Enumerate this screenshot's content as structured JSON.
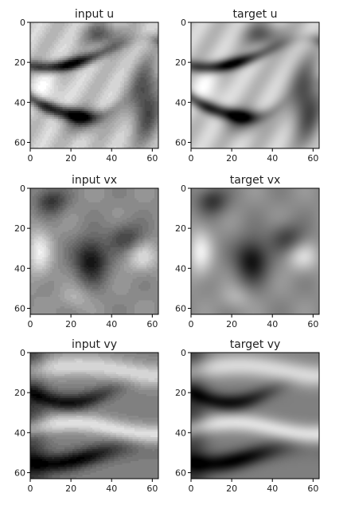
{
  "chart_data": [
    {
      "type": "heatmap",
      "title": "input u",
      "colormap": "gray",
      "xlim": [
        0,
        63
      ],
      "ylim": [
        63,
        0
      ],
      "xticks": [
        0,
        20,
        40,
        60
      ],
      "yticks": [
        0,
        20,
        40,
        60
      ],
      "pattern": "u",
      "smooth": false
    },
    {
      "type": "heatmap",
      "title": "target u",
      "colormap": "gray",
      "xlim": [
        0,
        63
      ],
      "ylim": [
        63,
        0
      ],
      "xticks": [
        0,
        20,
        40,
        60
      ],
      "yticks": [
        0,
        20,
        40,
        60
      ],
      "pattern": "u",
      "smooth": true
    },
    {
      "type": "heatmap",
      "title": "input vx",
      "colormap": "gray",
      "xlim": [
        0,
        63
      ],
      "ylim": [
        63,
        0
      ],
      "xticks": [
        0,
        20,
        40,
        60
      ],
      "yticks": [
        0,
        20,
        40,
        60
      ],
      "pattern": "vx",
      "smooth": false
    },
    {
      "type": "heatmap",
      "title": "target vx",
      "colormap": "gray",
      "xlim": [
        0,
        63
      ],
      "ylim": [
        63,
        0
      ],
      "xticks": [
        0,
        20,
        40,
        60
      ],
      "yticks": [
        0,
        20,
        40,
        60
      ],
      "pattern": "vx",
      "smooth": true
    },
    {
      "type": "heatmap",
      "title": "input vy",
      "colormap": "gray",
      "xlim": [
        0,
        63
      ],
      "ylim": [
        63,
        0
      ],
      "xticks": [
        0,
        20,
        40,
        60
      ],
      "yticks": [
        0,
        20,
        40,
        60
      ],
      "pattern": "vy",
      "smooth": false
    },
    {
      "type": "heatmap",
      "title": "target vy",
      "colormap": "gray",
      "xlim": [
        0,
        63
      ],
      "ylim": [
        63,
        0
      ],
      "xticks": [
        0,
        20,
        40,
        60
      ],
      "yticks": [
        0,
        20,
        40,
        60
      ],
      "pattern": "vy",
      "smooth": true
    }
  ]
}
